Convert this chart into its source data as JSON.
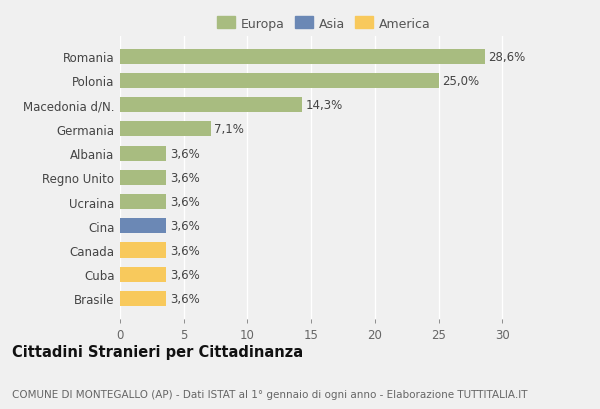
{
  "categories": [
    "Brasile",
    "Cuba",
    "Canada",
    "Cina",
    "Ucraina",
    "Regno Unito",
    "Albania",
    "Germania",
    "Macedonia d/N.",
    "Polonia",
    "Romania"
  ],
  "values": [
    3.6,
    3.6,
    3.6,
    3.6,
    3.6,
    3.6,
    3.6,
    7.1,
    14.3,
    25.0,
    28.6
  ],
  "labels": [
    "3,6%",
    "3,6%",
    "3,6%",
    "3,6%",
    "3,6%",
    "3,6%",
    "3,6%",
    "7,1%",
    "14,3%",
    "25,0%",
    "28,6%"
  ],
  "colors": [
    "#f8c95c",
    "#f8c95c",
    "#f8c95c",
    "#6b88b5",
    "#a8bc80",
    "#a8bc80",
    "#a8bc80",
    "#a8bc80",
    "#a8bc80",
    "#a8bc80",
    "#a8bc80"
  ],
  "legend_labels": [
    "Europa",
    "Asia",
    "America"
  ],
  "legend_colors": [
    "#a8bc80",
    "#6b88b5",
    "#f8c95c"
  ],
  "title": "Cittadini Stranieri per Cittadinanza",
  "subtitle": "COMUNE DI MONTEGALLO (AP) - Dati ISTAT al 1° gennaio di ogni anno - Elaborazione TUTTITALIA.IT",
  "xlim": [
    0,
    32
  ],
  "xticks": [
    0,
    5,
    10,
    15,
    20,
    25,
    30
  ],
  "bg_color": "#f0f0f0",
  "bar_height": 0.62,
  "grid_color": "#ffffff",
  "label_fontsize": 8.5,
  "tick_fontsize": 8.5,
  "title_fontsize": 10.5,
  "subtitle_fontsize": 7.5
}
